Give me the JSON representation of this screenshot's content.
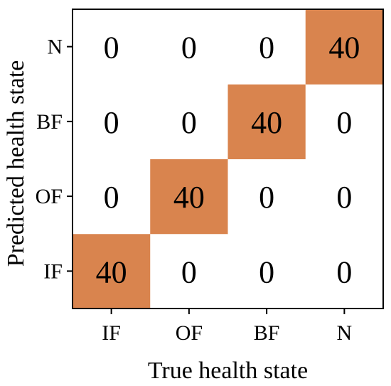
{
  "chart_data": {
    "type": "heatmap",
    "x_categories": [
      "IF",
      "OF",
      "BF",
      "N"
    ],
    "y_categories": [
      "IF",
      "OF",
      "BF",
      "N"
    ],
    "values": [
      [
        40,
        0,
        0,
        0
      ],
      [
        0,
        40,
        0,
        0
      ],
      [
        0,
        0,
        40,
        0
      ],
      [
        0,
        0,
        0,
        40
      ]
    ],
    "xlabel": "True health state",
    "ylabel": "Predicted health state",
    "value_range": [
      0,
      40
    ],
    "grid": false,
    "colors": {
      "low": "#ffffff",
      "high": "#d9844e",
      "border": "#000000",
      "text": "#000000"
    }
  }
}
